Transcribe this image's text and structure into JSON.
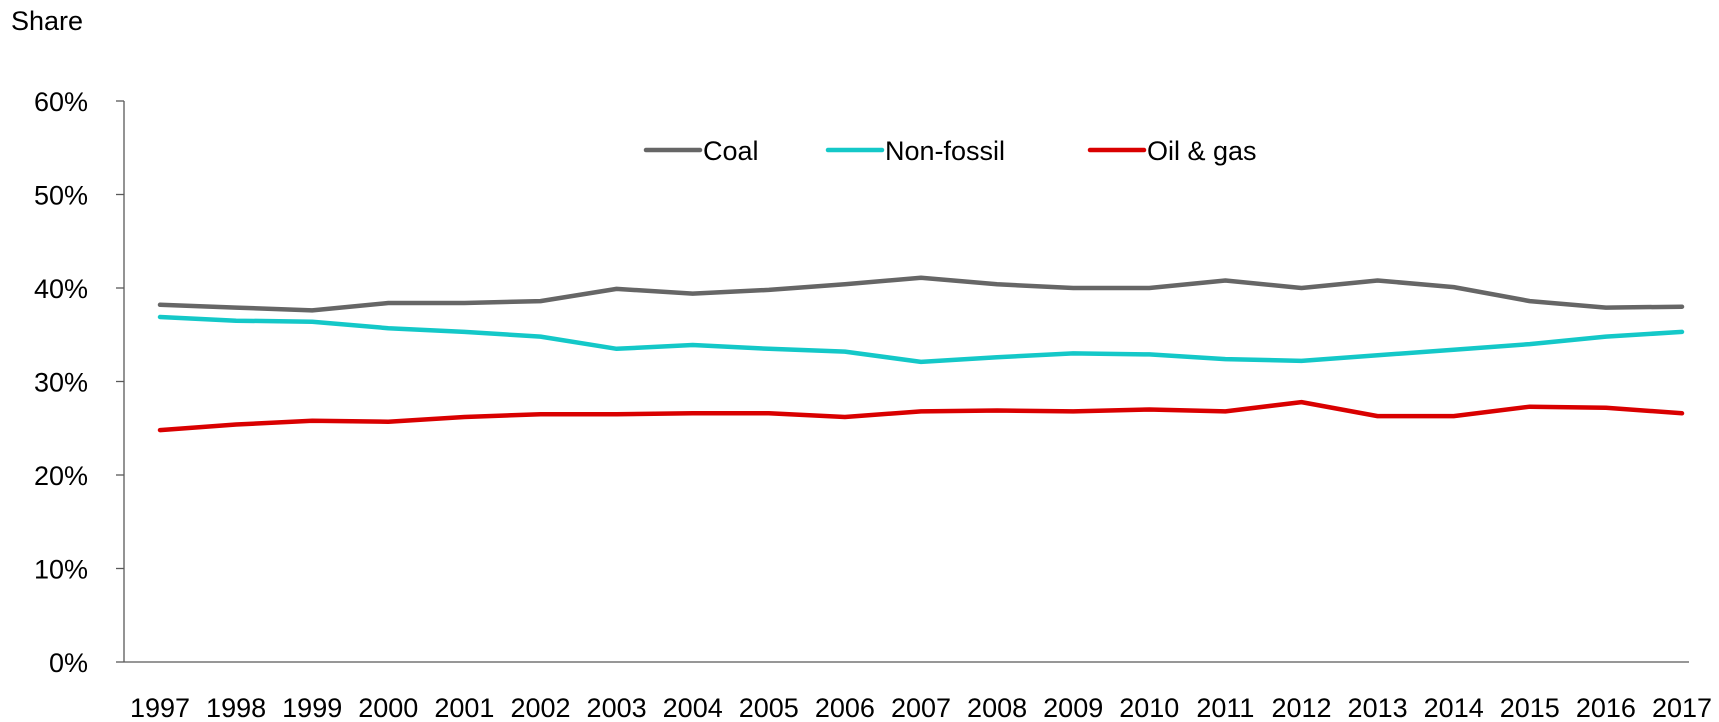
{
  "chart_data": {
    "type": "line",
    "ylabel": "Share",
    "xlabel": "",
    "x": [
      "1997",
      "1998",
      "1999",
      "2000",
      "2001",
      "2002",
      "2003",
      "2004",
      "2005",
      "2006",
      "2007",
      "2008",
      "2009",
      "2010",
      "2011",
      "2012",
      "2013",
      "2014",
      "2015",
      "2016",
      "2017"
    ],
    "ylim": [
      0,
      60
    ],
    "yticks": [
      "0%",
      "10%",
      "20%",
      "30%",
      "40%",
      "50%",
      "60%"
    ],
    "yticks_values": [
      0,
      10,
      20,
      30,
      40,
      50,
      60
    ],
    "grid": false,
    "legend_position": "top-center",
    "series": [
      {
        "name": "Coal",
        "color": "#666666",
        "values": [
          38.2,
          37.9,
          37.6,
          38.4,
          38.4,
          38.6,
          39.9,
          39.4,
          39.8,
          40.4,
          41.1,
          40.4,
          40.0,
          40.0,
          40.8,
          40.0,
          40.8,
          40.1,
          38.6,
          37.9,
          38.0
        ]
      },
      {
        "name": "Non-fossil",
        "color": "#14C8C8",
        "values": [
          36.9,
          36.5,
          36.4,
          35.7,
          35.3,
          34.8,
          33.5,
          33.9,
          33.5,
          33.2,
          32.1,
          32.6,
          33.0,
          32.9,
          32.4,
          32.2,
          32.8,
          33.4,
          34.0,
          34.8,
          35.3
        ]
      },
      {
        "name": "Oil & gas",
        "color": "#D90000",
        "values": [
          24.8,
          25.4,
          25.8,
          25.7,
          26.2,
          26.5,
          26.5,
          26.6,
          26.6,
          26.2,
          26.8,
          26.9,
          26.8,
          27.0,
          26.8,
          27.8,
          26.3,
          26.3,
          27.3,
          27.2,
          26.6
        ]
      }
    ]
  }
}
